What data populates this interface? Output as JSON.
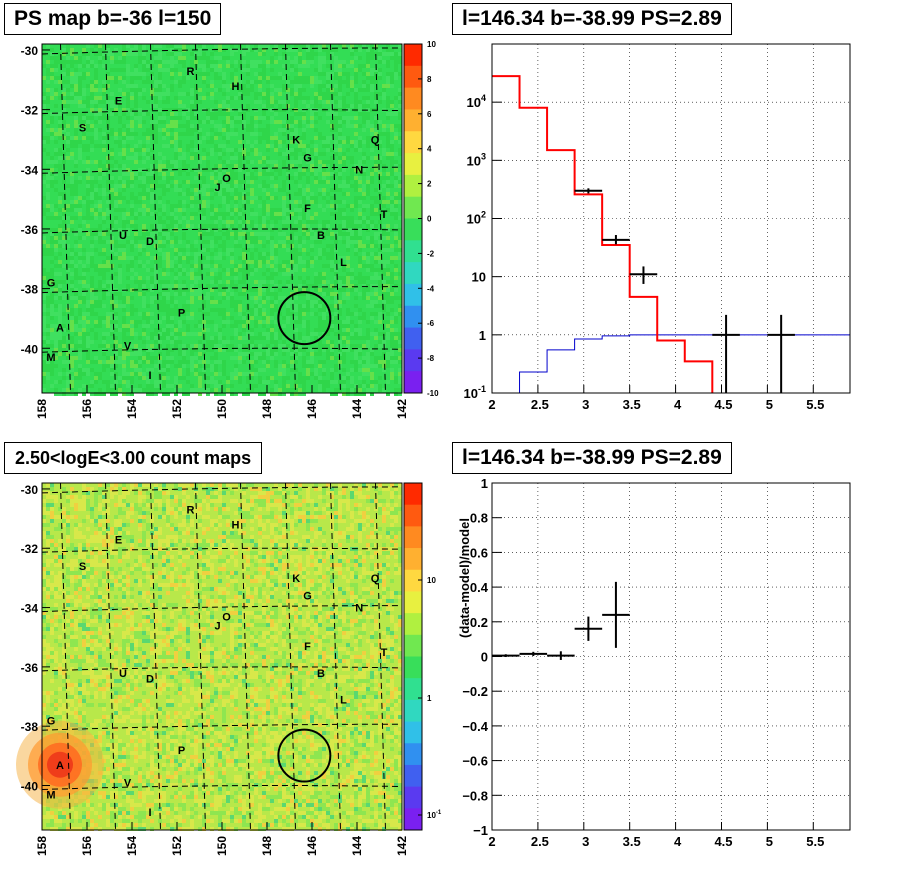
{
  "panels": {
    "tl_title": "PS map b=-36 l=150",
    "tr_title": "l=146.34 b=-38.99 PS=2.89",
    "bl_title": "2.50<logE<3.00 count maps",
    "br_title": "l=146.34 b=-38.99 PS=2.89"
  },
  "colors": {
    "model": "#ff0000",
    "background": "#0000cc",
    "data": "#000000",
    "map_base": "#2ecc40"
  },
  "chart_data": [
    {
      "type": "heatmap",
      "title": "PS map b=-36 l=150",
      "xlabel": "",
      "ylabel": "",
      "x_ticks": [
        "158",
        "156",
        "154",
        "152",
        "150",
        "148",
        "146",
        "144",
        "142"
      ],
      "y_ticks": [
        "-30",
        "-32",
        "-34",
        "-36",
        "-38",
        "-40"
      ],
      "colorbar_ticks": [
        "10",
        "8",
        "6",
        "4",
        "2",
        "0",
        "-2",
        "-4",
        "-6",
        "-8",
        "-10"
      ],
      "colorbar_range": [
        -10,
        10
      ],
      "xlim": [
        158,
        142
      ],
      "ylim": [
        -41.5,
        -29.8
      ],
      "sources": [
        {
          "label": "R",
          "l": 151.4,
          "b": -30.7
        },
        {
          "label": "H",
          "l": 149.4,
          "b": -31.2
        },
        {
          "label": "E",
          "l": 154.6,
          "b": -31.7
        },
        {
          "label": "S",
          "l": 156.2,
          "b": -32.6
        },
        {
          "label": "K",
          "l": 146.7,
          "b": -33.0
        },
        {
          "label": "Q",
          "l": 143.2,
          "b": -33.0
        },
        {
          "label": "G",
          "l": 146.2,
          "b": -33.6
        },
        {
          "label": "N",
          "l": 143.9,
          "b": -34.0
        },
        {
          "label": "O",
          "l": 149.8,
          "b": -34.3
        },
        {
          "label": "J",
          "l": 150.2,
          "b": -34.6
        },
        {
          "label": "F",
          "l": 146.2,
          "b": -35.3
        },
        {
          "label": "T",
          "l": 142.8,
          "b": -35.5
        },
        {
          "label": "U",
          "l": 154.4,
          "b": -36.2
        },
        {
          "label": "D",
          "l": 153.2,
          "b": -36.4
        },
        {
          "label": "B",
          "l": 145.6,
          "b": -36.2
        },
        {
          "label": "L",
          "l": 144.6,
          "b": -37.1
        },
        {
          "label": "G",
          "l": 157.6,
          "b": -37.8
        },
        {
          "label": "P",
          "l": 151.8,
          "b": -38.8
        },
        {
          "label": "A",
          "l": 157.2,
          "b": -39.3
        },
        {
          "label": "V",
          "l": 154.2,
          "b": -39.9
        },
        {
          "label": "M",
          "l": 157.6,
          "b": -40.3
        },
        {
          "label": "I",
          "l": 153.2,
          "b": -40.9
        }
      ],
      "circle": {
        "l": 146.34,
        "b": -38.99,
        "radius": 0.7
      }
    },
    {
      "type": "line",
      "title": "l=146.34 b=-38.99 PS=2.89",
      "xlabel": "",
      "ylabel": "",
      "xlim": [
        2,
        5.9
      ],
      "ylim": [
        0.1,
        100000
      ],
      "yscale": "log",
      "x_ticks": [
        "2",
        "2.5",
        "3",
        "3.5",
        "4",
        "4.5",
        "5",
        "5.5"
      ],
      "y_ticks": [
        "10^-1",
        "1",
        "10",
        "10^2",
        "10^3",
        "10^4"
      ],
      "grid": true,
      "series": [
        {
          "style": "step",
          "color": "#ff0000",
          "edges": [
            2.0,
            2.3,
            2.6,
            2.9,
            3.2,
            3.5,
            3.8,
            4.1,
            4.4
          ],
          "values": [
            28000,
            8000,
            1500,
            260,
            35,
            4.5,
            0.8,
            0.35
          ]
        },
        {
          "style": "step",
          "color": "#0000cc",
          "edges": [
            2.0,
            2.3,
            2.6,
            2.9,
            3.2,
            3.5,
            3.8,
            4.1,
            4.4,
            4.7,
            5.0,
            5.3,
            5.6,
            5.9
          ],
          "values": [
            0.07,
            0.23,
            0.55,
            0.85,
            0.96,
            1.0,
            1.0,
            1.0,
            1.0,
            1.0,
            1.0,
            1.0,
            1.0
          ]
        },
        {
          "style": "errorbar",
          "color": "#000000",
          "points": [
            {
              "x": 3.05,
              "xerr": 0.15,
              "y": 300,
              "ylo": 270,
              "yhi": 330
            },
            {
              "x": 3.35,
              "xerr": 0.15,
              "y": 43,
              "ylo": 36,
              "yhi": 52
            },
            {
              "x": 3.65,
              "xerr": 0.15,
              "y": 11,
              "ylo": 7.5,
              "yhi": 15
            },
            {
              "x": 4.55,
              "xerr": 0.15,
              "y": 1,
              "ylo": 0.1,
              "yhi": 2.2
            },
            {
              "x": 5.15,
              "xerr": 0.15,
              "y": 1,
              "ylo": 0.1,
              "yhi": 2.2
            }
          ]
        }
      ]
    },
    {
      "type": "heatmap",
      "title": "2.50<logE<3.00 count maps",
      "xlabel": "",
      "ylabel": "",
      "x_ticks": [
        "158",
        "156",
        "154",
        "152",
        "150",
        "148",
        "146",
        "144",
        "142"
      ],
      "y_ticks": [
        "-30",
        "-32",
        "-34",
        "-36",
        "-38",
        "-40"
      ],
      "colorbar_ticks": [
        "10",
        "1",
        "10^-1"
      ],
      "colorbar_scale": "log",
      "xlim": [
        158,
        142
      ],
      "ylim": [
        -41.5,
        -29.8
      ],
      "circle": {
        "l": 146.34,
        "b": -38.99,
        "radius": 0.7
      }
    },
    {
      "type": "scatter",
      "title": "l=146.34 b=-38.99 PS=2.89",
      "xlabel": "",
      "ylabel": "(data-model)/model",
      "xlim": [
        2,
        5.9
      ],
      "ylim": [
        -1,
        1
      ],
      "x_ticks": [
        "2",
        "2.5",
        "3",
        "3.5",
        "4",
        "4.5",
        "5",
        "5.5"
      ],
      "y_ticks": [
        "1",
        "0.8",
        "0.6",
        "0.4",
        "0.2",
        "0",
        "-0.2",
        "-0.4",
        "-0.6",
        "-0.8",
        "-1"
      ],
      "grid": true,
      "points": [
        {
          "x": 2.15,
          "xerr": 0.15,
          "y": 0.005,
          "yerr": 0.008
        },
        {
          "x": 2.45,
          "xerr": 0.15,
          "y": 0.015,
          "yerr": 0.012
        },
        {
          "x": 2.75,
          "xerr": 0.15,
          "y": 0.005,
          "yerr": 0.025
        },
        {
          "x": 3.05,
          "xerr": 0.15,
          "y": 0.16,
          "yerr": 0.07
        },
        {
          "x": 3.35,
          "xerr": 0.15,
          "y": 0.24,
          "yerr": 0.19
        }
      ]
    }
  ]
}
